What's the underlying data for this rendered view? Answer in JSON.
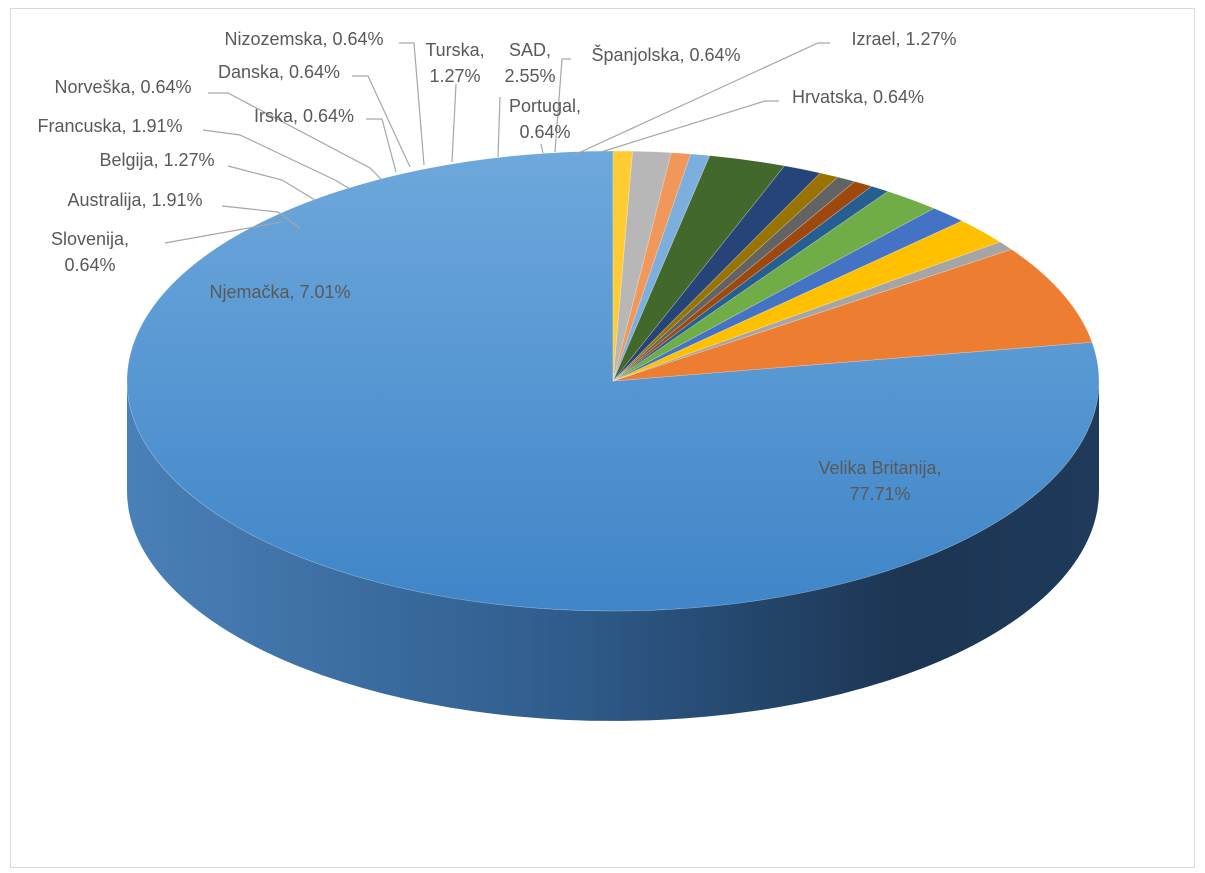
{
  "chart_data": {
    "type": "pie",
    "title": "",
    "three_d": true,
    "legend": "none",
    "slices": [
      {
        "label": "Velika Britanija",
        "value": 77.71,
        "value_label": "77.71%",
        "color": "#5b9bd5"
      },
      {
        "label": "Njemačka",
        "value": 7.01,
        "value_label": "7.01%",
        "color": "#ed7d31"
      },
      {
        "label": "Slovenija",
        "value": 0.64,
        "value_label": "0.64%",
        "color": "#a5a5a5"
      },
      {
        "label": "Australija",
        "value": 1.91,
        "value_label": "1.91%",
        "color": "#ffc000"
      },
      {
        "label": "Belgija",
        "value": 1.27,
        "value_label": "1.27%",
        "color": "#4472c4"
      },
      {
        "label": "Francuska",
        "value": 1.91,
        "value_label": "1.91%",
        "color": "#70ad47"
      },
      {
        "label": "Norveška",
        "value": 0.64,
        "value_label": "0.64%",
        "color": "#255e91"
      },
      {
        "label": "Irska",
        "value": 0.64,
        "value_label": "0.64%",
        "color": "#9e480e"
      },
      {
        "label": "Danska",
        "value": 0.64,
        "value_label": "0.64%",
        "color": "#636363"
      },
      {
        "label": "Nizozemska",
        "value": 0.64,
        "value_label": "0.64%",
        "color": "#997300"
      },
      {
        "label": "Turska",
        "value": 1.27,
        "value_label": "1.27%",
        "color": "#264478"
      },
      {
        "label": "SAD",
        "value": 2.55,
        "value_label": "2.55%",
        "color": "#43682b"
      },
      {
        "label": "Portugal",
        "value": 0.64,
        "value_label": "0.64%",
        "color": "#7cafdd"
      },
      {
        "label": "Španjolska",
        "value": 0.64,
        "value_label": "0.64%",
        "color": "#f1975a"
      },
      {
        "label": "Izrael",
        "value": 1.27,
        "value_label": "1.27%",
        "color": "#b7b7b7"
      },
      {
        "label": "Hrvatska",
        "value": 0.64,
        "value_label": "0.64%",
        "color": "#ffcd33"
      }
    ]
  }
}
